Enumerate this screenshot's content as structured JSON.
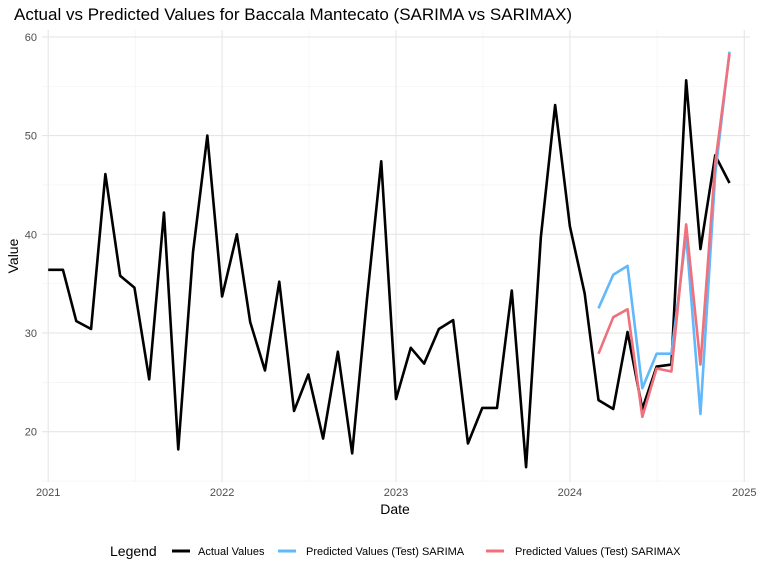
{
  "chart_data": {
    "type": "line",
    "title": "Actual vs Predicted Values for Baccala Mantecato (SARIMA vs SARIMAX)",
    "xlabel": "Date",
    "ylabel": "Value",
    "xlim": [
      "2020-12-19",
      "2025-01-13"
    ],
    "ylim": [
      14.9,
      60.7
    ],
    "x_ticks": [
      "2021-01-01",
      "2022-01-01",
      "2023-01-01",
      "2024-01-01",
      "2025-01-01"
    ],
    "x_tick_labels": [
      "2021",
      "2022",
      "2023",
      "2024",
      "2025"
    ],
    "y_ticks": [
      20,
      30,
      40,
      50,
      60
    ],
    "grid": true,
    "legend_position": "bottom",
    "legend_title": "Legend",
    "series": [
      {
        "name": "Actual Values",
        "color": "#000000",
        "points": [
          [
            "2021-01-01",
            36.4
          ],
          [
            "2021-02-01",
            36.4
          ],
          [
            "2021-03-01",
            31.2
          ],
          [
            "2021-04-01",
            30.4
          ],
          [
            "2021-05-01",
            46.1
          ],
          [
            "2021-06-01",
            35.8
          ],
          [
            "2021-07-01",
            34.6
          ],
          [
            "2021-08-01",
            25.3
          ],
          [
            "2021-09-01",
            42.2
          ],
          [
            "2021-10-01",
            18.2
          ],
          [
            "2021-11-01",
            38.2
          ],
          [
            "2021-12-01",
            50.0
          ],
          [
            "2022-01-01",
            33.7
          ],
          [
            "2022-02-01",
            40.0
          ],
          [
            "2022-03-01",
            31.1
          ],
          [
            "2022-04-01",
            26.2
          ],
          [
            "2022-05-01",
            35.2
          ],
          [
            "2022-06-01",
            22.1
          ],
          [
            "2022-07-01",
            25.8
          ],
          [
            "2022-08-01",
            19.3
          ],
          [
            "2022-09-01",
            28.1
          ],
          [
            "2022-10-01",
            17.8
          ],
          [
            "2022-11-01",
            33.4
          ],
          [
            "2022-12-01",
            47.4
          ],
          [
            "2023-01-01",
            23.3
          ],
          [
            "2023-02-01",
            28.5
          ],
          [
            "2023-03-01",
            26.9
          ],
          [
            "2023-04-01",
            30.4
          ],
          [
            "2023-05-01",
            31.3
          ],
          [
            "2023-06-01",
            18.8
          ],
          [
            "2023-07-01",
            22.4
          ],
          [
            "2023-08-01",
            22.4
          ],
          [
            "2023-09-01",
            34.3
          ],
          [
            "2023-10-01",
            16.4
          ],
          [
            "2023-11-01",
            39.7
          ],
          [
            "2023-12-01",
            53.1
          ],
          [
            "2024-01-01",
            40.8
          ],
          [
            "2024-02-01",
            34.0
          ],
          [
            "2024-03-01",
            23.2
          ],
          [
            "2024-04-01",
            22.3
          ],
          [
            "2024-05-01",
            30.1
          ],
          [
            "2024-06-01",
            22.3
          ],
          [
            "2024-07-01",
            26.6
          ],
          [
            "2024-08-01",
            26.8
          ],
          [
            "2024-09-01",
            55.6
          ],
          [
            "2024-10-01",
            38.5
          ],
          [
            "2024-11-01",
            48.0
          ],
          [
            "2024-12-01",
            45.2
          ]
        ]
      },
      {
        "name": "Predicted Values (Test) SARIMA",
        "color": "#61B8FA",
        "points": [
          [
            "2024-03-01",
            32.5
          ],
          [
            "2024-04-01",
            35.9
          ],
          [
            "2024-05-01",
            36.8
          ],
          [
            "2024-06-01",
            24.4
          ],
          [
            "2024-07-01",
            27.9
          ],
          [
            "2024-08-01",
            27.9
          ],
          [
            "2024-09-01",
            39.9
          ],
          [
            "2024-10-01",
            21.8
          ],
          [
            "2024-11-01",
            46.1
          ],
          [
            "2024-12-01",
            58.5
          ]
        ]
      },
      {
        "name": "Predicted Values (Test) SARIMAX",
        "color": "#F0707B",
        "points": [
          [
            "2024-03-01",
            27.9
          ],
          [
            "2024-04-01",
            31.6
          ],
          [
            "2024-05-01",
            32.4
          ],
          [
            "2024-06-01",
            21.5
          ],
          [
            "2024-07-01",
            26.4
          ],
          [
            "2024-08-01",
            26.1
          ],
          [
            "2024-09-01",
            41.0
          ],
          [
            "2024-10-01",
            26.8
          ],
          [
            "2024-11-01",
            47.2
          ],
          [
            "2024-12-01",
            58.3
          ]
        ]
      }
    ]
  }
}
